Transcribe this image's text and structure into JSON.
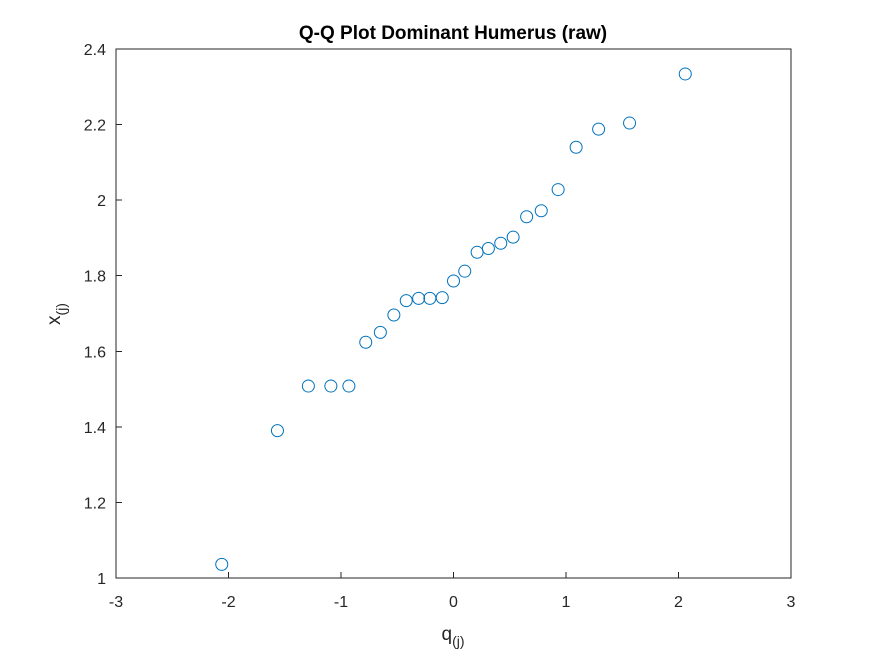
{
  "chart_data": {
    "type": "scatter",
    "title": "Q-Q Plot Dominant Humerus (raw)",
    "xlabel": {
      "main": "q",
      "sub": "(j)"
    },
    "ylabel": {
      "main": "x",
      "sub": "(j)"
    },
    "xlim": [
      -3,
      3
    ],
    "ylim": [
      1,
      2.4
    ],
    "xticks": [
      "-3",
      "-2",
      "-1",
      "0",
      "1",
      "2",
      "3"
    ],
    "yticks": [
      "1",
      "1.2",
      "1.4",
      "1.6",
      "1.8",
      "2",
      "2.2",
      "2.4"
    ],
    "grid": false,
    "marker": "circle-open",
    "color": "#0072BD",
    "series": [
      {
        "points": [
          [
            -2.06,
            1.036
          ],
          [
            -1.565,
            1.39
          ],
          [
            -1.29,
            1.508
          ],
          [
            -1.09,
            1.508
          ],
          [
            -0.93,
            1.508
          ],
          [
            -0.78,
            1.624
          ],
          [
            -0.65,
            1.65
          ],
          [
            -0.53,
            1.696
          ],
          [
            -0.42,
            1.734
          ],
          [
            -0.31,
            1.74
          ],
          [
            -0.21,
            1.74
          ],
          [
            -0.1,
            1.742
          ],
          [
            0.0,
            1.786
          ],
          [
            0.1,
            1.812
          ],
          [
            0.21,
            1.862
          ],
          [
            0.31,
            1.872
          ],
          [
            0.42,
            1.886
          ],
          [
            0.53,
            1.902
          ],
          [
            0.65,
            1.956
          ],
          [
            0.78,
            1.972
          ],
          [
            0.93,
            2.028
          ],
          [
            1.09,
            2.14
          ],
          [
            1.29,
            2.188
          ],
          [
            1.565,
            2.204
          ],
          [
            2.06,
            2.334
          ]
        ]
      }
    ]
  }
}
